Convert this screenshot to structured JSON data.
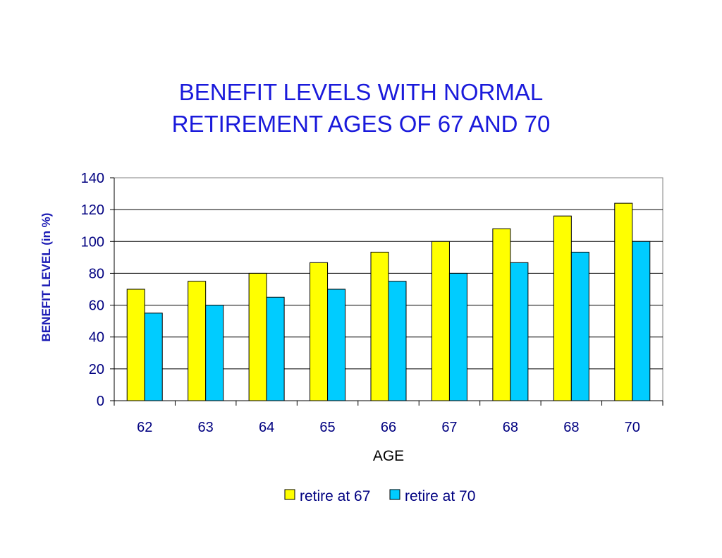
{
  "chart_data": {
    "type": "bar",
    "title_lines": [
      "BENEFIT LEVELS WITH NORMAL",
      "RETIREMENT AGES OF 67 AND 70"
    ],
    "xlabel": "AGE",
    "ylabel": "BENEFIT LEVEL (in %)",
    "categories": [
      "62",
      "63",
      "64",
      "65",
      "66",
      "67",
      "68",
      "68",
      "70"
    ],
    "series": [
      {
        "name": "retire at 67",
        "color": "#ffff00",
        "values": [
          70,
          75,
          80,
          86.7,
          93.3,
          100,
          108,
          116,
          124
        ]
      },
      {
        "name": "retire at 70",
        "color": "#00ccff",
        "values": [
          55,
          60,
          65,
          70,
          75,
          80,
          86.7,
          93.3,
          100
        ]
      }
    ],
    "ylim": [
      0,
      140
    ],
    "yticks": [
      "0",
      "20",
      "40",
      "60",
      "80",
      "100",
      "120",
      "140"
    ],
    "grid": true,
    "legend_position": "bottom",
    "colors": {
      "title": "#1a1adb",
      "ylabel": "#1a1ab4",
      "axis_text": "#000080"
    }
  }
}
